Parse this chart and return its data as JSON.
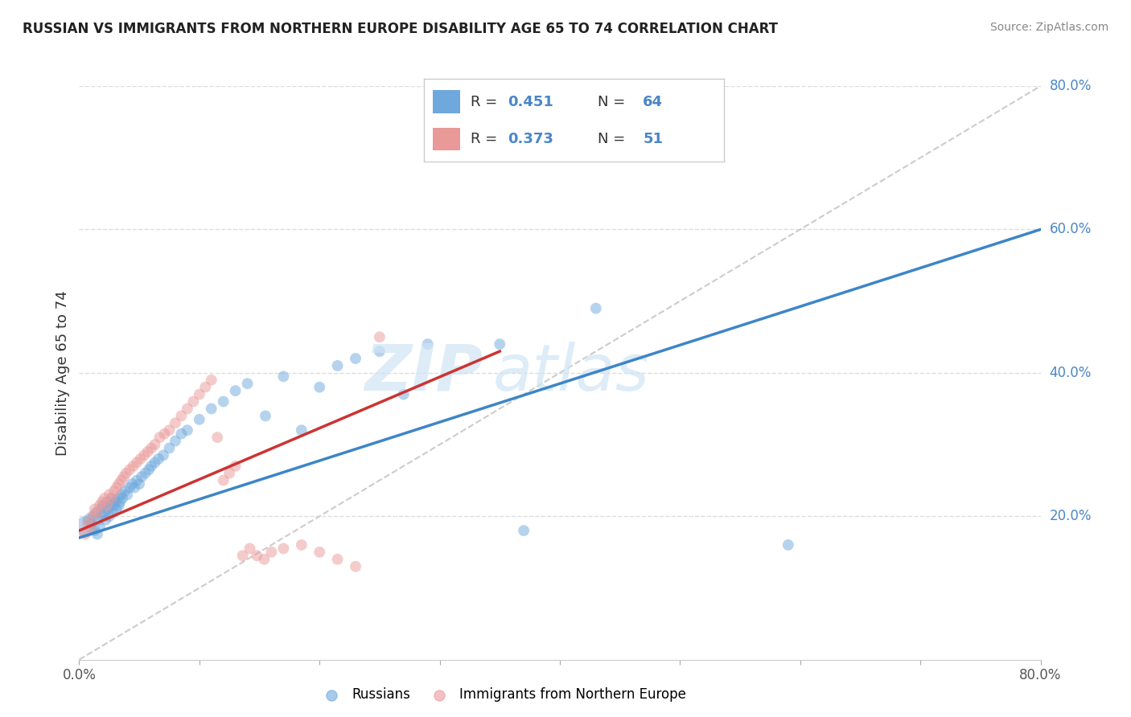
{
  "title": "RUSSIAN VS IMMIGRANTS FROM NORTHERN EUROPE DISABILITY AGE 65 TO 74 CORRELATION CHART",
  "source": "Source: ZipAtlas.com",
  "ylabel": "Disability Age 65 to 74",
  "x_min": 0.0,
  "x_max": 0.8,
  "y_min": 0.0,
  "y_max": 0.8,
  "blue_color": "#6fa8dc",
  "pink_color": "#ea9999",
  "blue_line_color": "#3d85c8",
  "pink_line_color": "#cc3333",
  "dashed_line_color": "#cccccc",
  "grid_color": "#dddddd",
  "russians_x": [
    0.005,
    0.008,
    0.01,
    0.012,
    0.013,
    0.014,
    0.015,
    0.016,
    0.017,
    0.018,
    0.019,
    0.02,
    0.021,
    0.022,
    0.023,
    0.024,
    0.025,
    0.026,
    0.027,
    0.028,
    0.029,
    0.03,
    0.031,
    0.032,
    0.033,
    0.034,
    0.035,
    0.036,
    0.038,
    0.04,
    0.042,
    0.044,
    0.046,
    0.048,
    0.05,
    0.052,
    0.055,
    0.058,
    0.06,
    0.063,
    0.066,
    0.07,
    0.075,
    0.08,
    0.085,
    0.09,
    0.1,
    0.11,
    0.12,
    0.13,
    0.14,
    0.155,
    0.17,
    0.185,
    0.2,
    0.215,
    0.23,
    0.25,
    0.27,
    0.29,
    0.35,
    0.37,
    0.43,
    0.59
  ],
  "russians_y": [
    0.185,
    0.195,
    0.19,
    0.2,
    0.18,
    0.205,
    0.175,
    0.195,
    0.185,
    0.21,
    0.2,
    0.215,
    0.205,
    0.195,
    0.22,
    0.21,
    0.2,
    0.215,
    0.225,
    0.205,
    0.215,
    0.22,
    0.21,
    0.225,
    0.215,
    0.22,
    0.23,
    0.225,
    0.235,
    0.23,
    0.24,
    0.245,
    0.24,
    0.25,
    0.245,
    0.255,
    0.26,
    0.265,
    0.27,
    0.275,
    0.28,
    0.285,
    0.295,
    0.305,
    0.315,
    0.32,
    0.335,
    0.35,
    0.36,
    0.375,
    0.385,
    0.34,
    0.395,
    0.32,
    0.38,
    0.41,
    0.42,
    0.43,
    0.37,
    0.44,
    0.44,
    0.18,
    0.49,
    0.16
  ],
  "russians_size": [
    350,
    120,
    100,
    100,
    100,
    100,
    100,
    100,
    100,
    100,
    100,
    100,
    100,
    100,
    100,
    100,
    100,
    100,
    100,
    100,
    100,
    100,
    100,
    100,
    100,
    100,
    100,
    100,
    100,
    100,
    100,
    100,
    100,
    100,
    100,
    100,
    100,
    100,
    100,
    100,
    100,
    100,
    100,
    100,
    100,
    100,
    100,
    100,
    100,
    100,
    100,
    100,
    100,
    100,
    100,
    100,
    100,
    100,
    100,
    100,
    100,
    100,
    100,
    100
  ],
  "ne_x": [
    0.005,
    0.007,
    0.009,
    0.011,
    0.013,
    0.015,
    0.017,
    0.019,
    0.021,
    0.023,
    0.025,
    0.027,
    0.029,
    0.031,
    0.033,
    0.035,
    0.037,
    0.039,
    0.042,
    0.045,
    0.048,
    0.051,
    0.054,
    0.057,
    0.06,
    0.063,
    0.067,
    0.071,
    0.075,
    0.08,
    0.085,
    0.09,
    0.095,
    0.1,
    0.105,
    0.11,
    0.115,
    0.12,
    0.125,
    0.13,
    0.136,
    0.142,
    0.148,
    0.154,
    0.16,
    0.17,
    0.185,
    0.2,
    0.215,
    0.23,
    0.25
  ],
  "ne_y": [
    0.175,
    0.19,
    0.185,
    0.2,
    0.21,
    0.205,
    0.215,
    0.22,
    0.225,
    0.215,
    0.23,
    0.225,
    0.235,
    0.24,
    0.245,
    0.25,
    0.255,
    0.26,
    0.265,
    0.27,
    0.275,
    0.28,
    0.285,
    0.29,
    0.295,
    0.3,
    0.31,
    0.315,
    0.32,
    0.33,
    0.34,
    0.35,
    0.36,
    0.37,
    0.38,
    0.39,
    0.31,
    0.25,
    0.26,
    0.27,
    0.145,
    0.155,
    0.145,
    0.14,
    0.15,
    0.155,
    0.16,
    0.15,
    0.14,
    0.13,
    0.45
  ],
  "ne_size": [
    100,
    100,
    100,
    100,
    100,
    100,
    100,
    100,
    100,
    100,
    100,
    100,
    100,
    100,
    100,
    100,
    100,
    100,
    100,
    100,
    100,
    100,
    100,
    100,
    100,
    100,
    100,
    100,
    100,
    100,
    100,
    100,
    100,
    100,
    100,
    100,
    100,
    100,
    100,
    100,
    100,
    100,
    100,
    100,
    100,
    100,
    100,
    100,
    100,
    100,
    100
  ]
}
